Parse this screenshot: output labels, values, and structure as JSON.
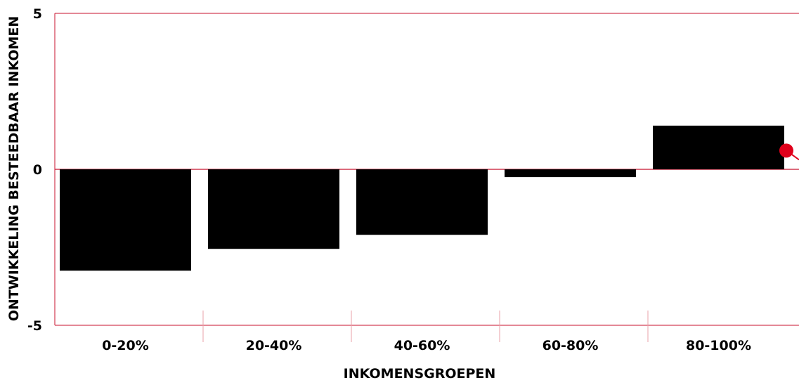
{
  "chart_data": {
    "type": "bar",
    "title": "",
    "xlabel": "INKOMENSGROEPEN",
    "ylabel": "ONTWIKKELING BESTEEDBAAR INKOMEN",
    "categories": [
      "0-20%",
      "20-40%",
      "40-60%",
      "60-80%",
      "80-100%"
    ],
    "values": [
      -3.25,
      -2.55,
      -2.1,
      -0.25,
      1.4
    ],
    "ylim": [
      -5,
      5
    ],
    "yticks": [
      "-5",
      "0",
      "5"
    ],
    "grid": false,
    "legend": "none",
    "colors": {
      "bar": "#000000",
      "axis_line": "#c8102e",
      "marker": "#e0001b",
      "divider": "#e8a0aa"
    },
    "marker": {
      "value": 0.6
    }
  }
}
